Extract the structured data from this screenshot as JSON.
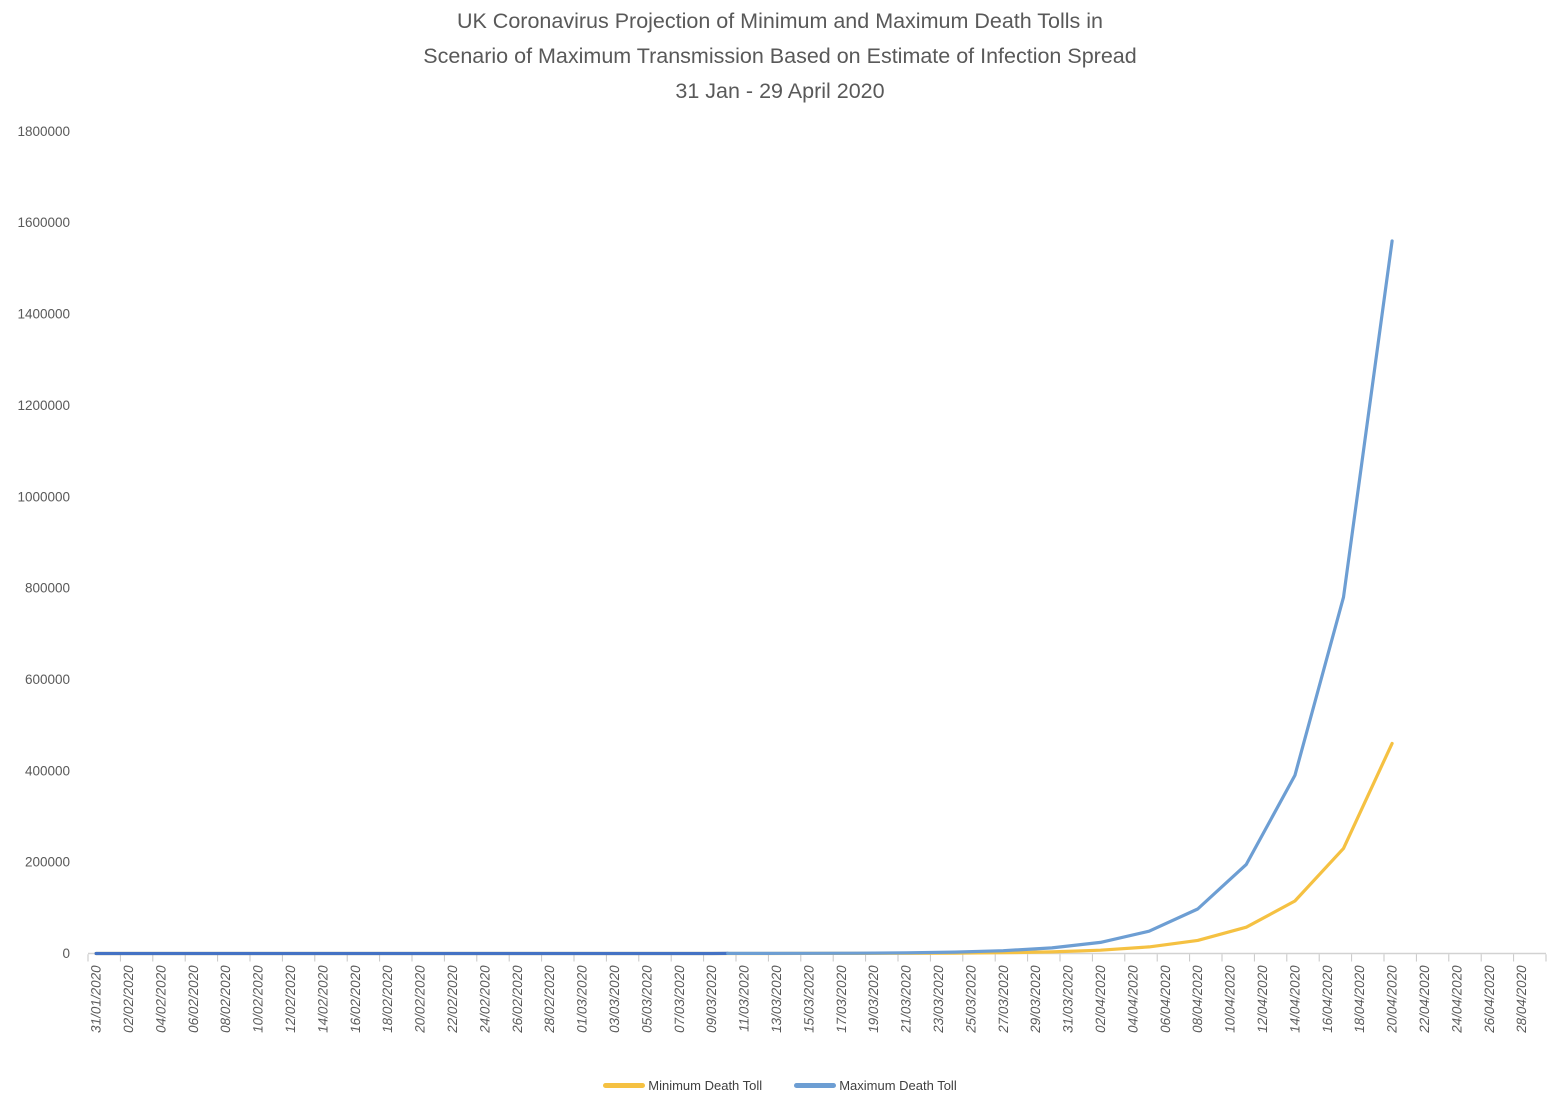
{
  "title": {
    "line1": "UK Coronavirus Projection of Minimum and Maximum Death Tolls in",
    "line2": "Scenario of Maximum Transmission Based on Estimate of Infection Spread",
    "line3": "31 Jan - 29 April 2020"
  },
  "legend": {
    "items": [
      {
        "label": "Minimum Death Toll",
        "color": "#F5C142"
      },
      {
        "label": "Maximum Death Toll",
        "color": "#6D9ED3"
      }
    ]
  },
  "colors": {
    "min_line": "#F5C142",
    "max_line": "#6D9ED3",
    "max_line_early": "#4472C4",
    "axis_line": "#D2D2D2",
    "tick_mark": "#C6C6C6",
    "axis_text": "#595959",
    "title_text": "#595959",
    "legend_text": "#404040"
  },
  "chart_data": {
    "type": "line",
    "title": "UK Coronavirus Projection of Minimum and Maximum Death Tolls in Scenario of Maximum Transmission Based on Estimate of Infection Spread 31 Jan - 29 April 2020",
    "grid": false,
    "legend_position": "bottom",
    "x_dates": [
      "31/01/2020",
      "02/02/2020",
      "05/02/2020",
      "08/02/2020",
      "11/02/2020",
      "14/02/2020",
      "17/02/2020",
      "20/02/2020",
      "23/02/2020",
      "26/02/2020",
      "29/02/2020",
      "03/03/2020",
      "06/03/2020",
      "09/03/2020",
      "12/03/2020",
      "15/03/2020",
      "18/03/2020",
      "21/03/2020",
      "24/03/2020",
      "27/03/2020",
      "30/03/2020",
      "02/04/2020",
      "05/04/2020",
      "08/04/2020",
      "11/04/2020",
      "14/04/2020",
      "17/04/2020",
      "20/04/2020"
    ],
    "series": [
      {
        "name": "Minimum Death Toll",
        "color": "#F5C142",
        "values": [
          0,
          0,
          0,
          0,
          0,
          0,
          0,
          0,
          1,
          2,
          4,
          7,
          14,
          28,
          56,
          112,
          225,
          449,
          898,
          1797,
          3594,
          7188,
          14375,
          28750,
          57500,
          115000,
          230000,
          460000
        ]
      },
      {
        "name": "Maximum Death Toll",
        "color": "#6D9ED3",
        "color_early": "#4472C4",
        "color_split_date": "10/03/2020",
        "values": [
          0,
          0,
          0,
          0,
          0,
          0,
          1,
          1,
          3,
          6,
          12,
          24,
          48,
          95,
          190,
          381,
          762,
          1523,
          3047,
          6094,
          12188,
          24375,
          48750,
          97500,
          195000,
          390000,
          780000,
          1560000
        ]
      }
    ],
    "x_axis": {
      "start": "31/01/2020",
      "end": "29/04/2020",
      "label_interval_days": 2,
      "tick_labels": [
        "31/01/2020",
        "02/02/2020",
        "04/02/2020",
        "06/02/2020",
        "08/02/2020",
        "10/02/2020",
        "12/02/2020",
        "14/02/2020",
        "16/02/2020",
        "18/02/2020",
        "20/02/2020",
        "22/02/2020",
        "24/02/2020",
        "26/02/2020",
        "28/02/2020",
        "01/03/2020",
        "03/03/2020",
        "05/03/2020",
        "07/03/2020",
        "09/03/2020",
        "11/03/2020",
        "13/03/2020",
        "15/03/2020",
        "17/03/2020",
        "19/03/2020",
        "21/03/2020",
        "23/03/2020",
        "25/03/2020",
        "27/03/2020",
        "29/03/2020",
        "31/03/2020",
        "02/04/2020",
        "04/04/2020",
        "06/04/2020",
        "08/04/2020",
        "10/04/2020",
        "12/04/2020",
        "14/04/2020",
        "16/04/2020",
        "18/04/2020",
        "20/04/2020",
        "22/04/2020",
        "24/04/2020",
        "26/04/2020",
        "28/04/2020"
      ]
    },
    "y_axis": {
      "min": 0,
      "max": 1800000,
      "step": 200000,
      "tick_labels": [
        "0",
        "200000",
        "400000",
        "600000",
        "800000",
        "1000000",
        "1200000",
        "1400000",
        "1600000",
        "1800000"
      ]
    }
  }
}
